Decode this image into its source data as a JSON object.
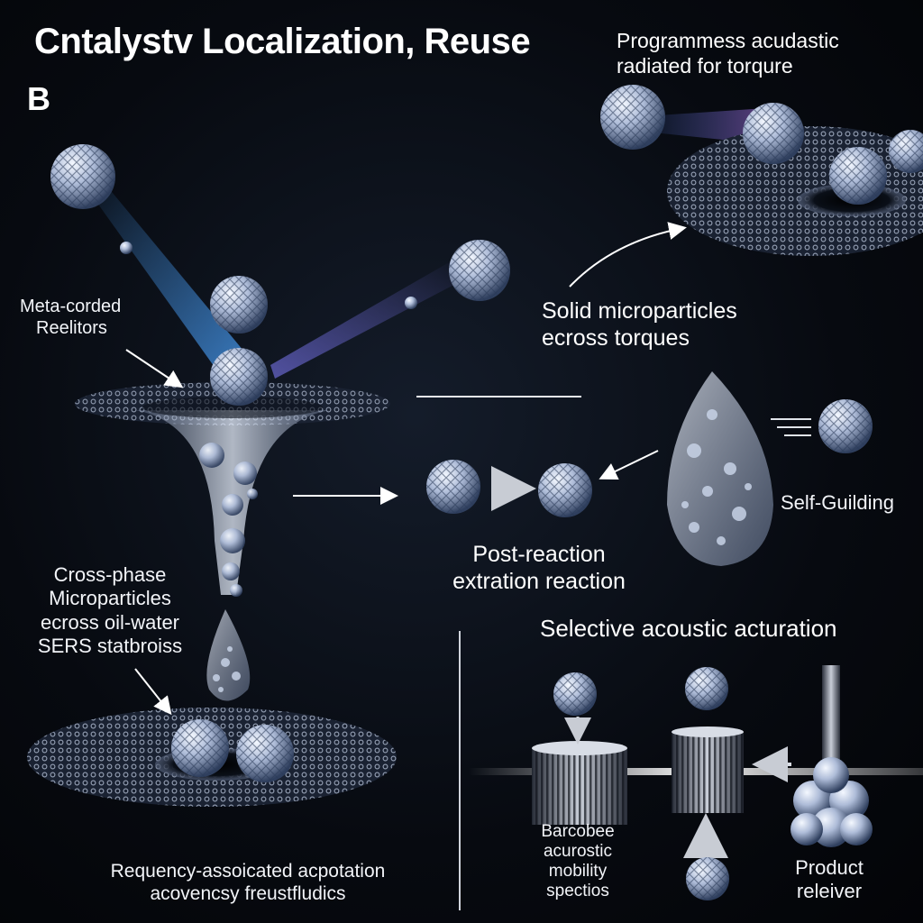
{
  "title": "Cntalystv Localization, Reuse",
  "panel_letter": "B",
  "labels": {
    "top_right_line1": "Programmess acudastic",
    "top_right_line2": "radiated for torqure",
    "meta_line1": "Meta-corded",
    "meta_line2": "Reelitors",
    "solid_line1": "Solid microparticles",
    "solid_line2": "ecross torques",
    "self_guiding": "Self-Guilding",
    "post_line1": "Post-reaction",
    "post_line2": "extration reaction",
    "cross_line1": "Cross-phase",
    "cross_line2": "Microparticles",
    "cross_line3": "ecross oil-water",
    "cross_line4": "SERS statbroiss",
    "selective": "Selective acoustic acturation",
    "barcode_line1": "Barcobee",
    "barcode_line2": "acurostic",
    "barcode_line3": "mobility",
    "barcode_line4": "spectios",
    "product_line1": "Product",
    "product_line2": "releiver",
    "bottom_line1": "Requency-assoicated acpotation",
    "bottom_line2": "acovencsy freustfludics"
  },
  "colors": {
    "background": "#070a10",
    "sphere_light": "#dde6f5",
    "sphere_dark": "#4a5f86",
    "beam": "#3f8fd6",
    "mesh": "#9aa8c4",
    "text": "#ffffff"
  }
}
